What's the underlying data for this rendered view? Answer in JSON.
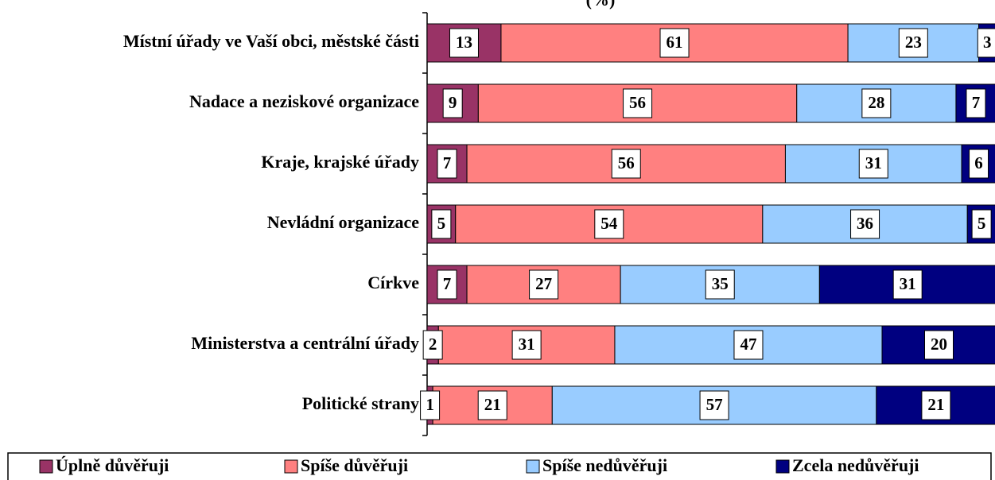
{
  "chart_data": {
    "type": "stacked-bar",
    "orientation": "horizontal",
    "title": "(%)",
    "categories": [
      "Místní úřady ve Vaší obci, městské části",
      "Nadace a neziskové organizace",
      "Kraje, krajské úřady",
      "Nevládní organizace",
      "Církve",
      "Ministerstva a centrální úřady",
      "Politické strany"
    ],
    "series": [
      {
        "name": "Úplně důvěřuji",
        "color": "#993366",
        "values": [
          13,
          9,
          7,
          5,
          7,
          2,
          1
        ]
      },
      {
        "name": "Spíše důvěřuji",
        "color": "#ff8080",
        "values": [
          61,
          56,
          56,
          54,
          27,
          31,
          21
        ]
      },
      {
        "name": "Spíše nedůvěřuji",
        "color": "#99ccff",
        "values": [
          23,
          28,
          31,
          36,
          35,
          47,
          57
        ]
      },
      {
        "name": "Zcela nedůvěřuji",
        "color": "#000080",
        "values": [
          3,
          7,
          6,
          5,
          31,
          20,
          21
        ]
      }
    ],
    "xlim": [
      0,
      100
    ]
  }
}
